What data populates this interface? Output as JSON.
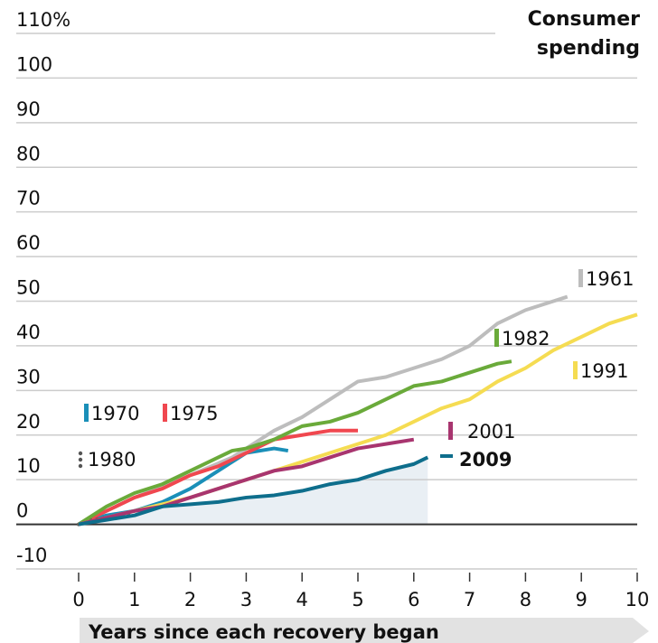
{
  "chart_data": {
    "type": "line",
    "title": "Consumer spending",
    "xlabel": "Years since each recovery began",
    "xlim": [
      0,
      10
    ],
    "xticks": [
      0,
      1,
      2,
      3,
      4,
      5,
      6,
      7,
      8,
      9,
      10
    ],
    "ylim": [
      -10,
      110
    ],
    "yticks": [
      {
        "value": 110,
        "label": "110%"
      },
      100,
      90,
      80,
      70,
      60,
      50,
      40,
      30,
      20,
      10,
      0,
      -10
    ],
    "grid": true,
    "series": [
      {
        "name": "1961",
        "color": "#bdbdbd",
        "x": [
          0,
          1,
          2,
          2.75,
          3,
          3.5,
          4,
          4.5,
          5,
          5.5,
          6,
          6.5,
          7,
          7.5,
          8,
          8.5,
          8.75
        ],
        "values": [
          0,
          6,
          11,
          15,
          17,
          21,
          24,
          28,
          32,
          33,
          35,
          37,
          40,
          45,
          48,
          50,
          51
        ]
      },
      {
        "name": "1970",
        "color": "#1a8fb8",
        "x": [
          0,
          0.5,
          1,
          1.5,
          2,
          2.5,
          3,
          3.5,
          3.75
        ],
        "values": [
          0,
          2,
          3,
          5,
          8,
          12,
          16,
          17,
          16.5
        ]
      },
      {
        "name": "1975",
        "color": "#f0474f",
        "x": [
          0,
          0.5,
          1,
          1.5,
          2,
          2.5,
          3,
          3.5,
          4,
          4.5,
          5
        ],
        "values": [
          0,
          3,
          6,
          8,
          11,
          13,
          16,
          19,
          20,
          21,
          21
        ]
      },
      {
        "name": "1980",
        "color": "#555555",
        "dotted": true,
        "x": [
          0,
          0.25,
          0.5,
          0.75,
          1
        ],
        "values": [
          0,
          1,
          1.5,
          2,
          2
        ]
      },
      {
        "name": "1982",
        "color": "#6aaa3a",
        "x": [
          0,
          0.5,
          1,
          1.5,
          2,
          2.5,
          2.75,
          3,
          3.5,
          4,
          4.5,
          5,
          5.5,
          6,
          6.5,
          7,
          7.5,
          7.75
        ],
        "values": [
          0,
          4,
          7,
          9,
          12,
          15,
          16.5,
          17,
          19,
          22,
          23,
          25,
          28,
          31,
          32,
          34,
          36,
          36.5
        ]
      },
      {
        "name": "1991",
        "color": "#f5dc52",
        "x": [
          0,
          1,
          2,
          3,
          4,
          4.5,
          5,
          5.5,
          6,
          6.5,
          7,
          7.5,
          8,
          8.5,
          9,
          9.5,
          10
        ],
        "values": [
          0,
          3,
          6,
          10,
          14,
          16,
          18,
          20,
          23,
          26,
          28,
          32,
          35,
          39,
          42,
          45,
          47
        ]
      },
      {
        "name": "2001",
        "color": "#a8356f",
        "x": [
          0,
          1,
          1.5,
          2,
          2.5,
          3,
          3.5,
          4,
          4.5,
          5,
          5.5,
          6
        ],
        "values": [
          0,
          3,
          4,
          6,
          8,
          10,
          12,
          13,
          15,
          17,
          18,
          19
        ]
      },
      {
        "name": "2009",
        "color": "#0e6e8c",
        "area": true,
        "x": [
          0,
          0.5,
          1,
          1.5,
          2,
          2.5,
          3,
          3.5,
          4,
          4.5,
          5,
          5.5,
          6,
          6.25
        ],
        "values": [
          0,
          1,
          2,
          4,
          4.5,
          5,
          6,
          6.5,
          7.5,
          9,
          10,
          12,
          13.5,
          15
        ]
      }
    ]
  }
}
